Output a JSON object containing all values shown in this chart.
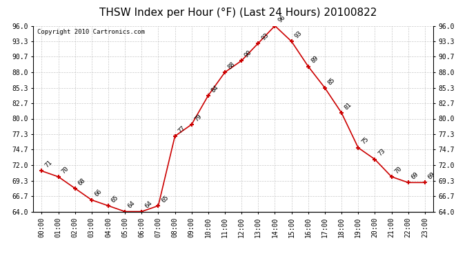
{
  "title": "THSW Index per Hour (°F) (Last 24 Hours) 20100822",
  "copyright": "Copyright 2010 Cartronics.com",
  "hours": [
    "00:00",
    "01:00",
    "02:00",
    "03:00",
    "04:00",
    "05:00",
    "06:00",
    "07:00",
    "08:00",
    "09:00",
    "10:00",
    "11:00",
    "12:00",
    "13:00",
    "14:00",
    "15:00",
    "16:00",
    "17:00",
    "18:00",
    "19:00",
    "20:00",
    "21:00",
    "22:00",
    "23:00"
  ],
  "values": [
    71,
    70,
    68,
    66,
    65,
    64,
    64,
    65,
    77,
    79,
    84,
    88,
    90,
    93,
    96,
    93.3,
    89,
    85.3,
    81,
    75,
    73,
    70,
    69,
    69
  ],
  "ylim": [
    64.0,
    96.0
  ],
  "yticks": [
    64.0,
    66.7,
    69.3,
    72.0,
    74.7,
    77.3,
    80.0,
    82.7,
    85.3,
    88.0,
    90.7,
    93.3,
    96.0
  ],
  "ytick_labels": [
    "64.0",
    "66.7",
    "69.3",
    "72.0",
    "74.7",
    "77.3",
    "80.0",
    "82.7",
    "85.3",
    "88.0",
    "90.7",
    "93.3",
    "96.0"
  ],
  "line_color": "#cc0000",
  "bg_color": "#ffffff",
  "grid_color": "#bbbbbb",
  "title_fontsize": 11,
  "label_fontsize": 7,
  "annotation_fontsize": 6.5,
  "copyright_fontsize": 6.5,
  "ann_labels": [
    "71",
    "70",
    "68",
    "66",
    "65",
    "64",
    "64",
    "65",
    "77",
    "79",
    "84",
    "88",
    "90",
    "93",
    "96",
    "93",
    "89",
    "85",
    "81",
    "75",
    "73",
    "70",
    "69",
    "69"
  ]
}
